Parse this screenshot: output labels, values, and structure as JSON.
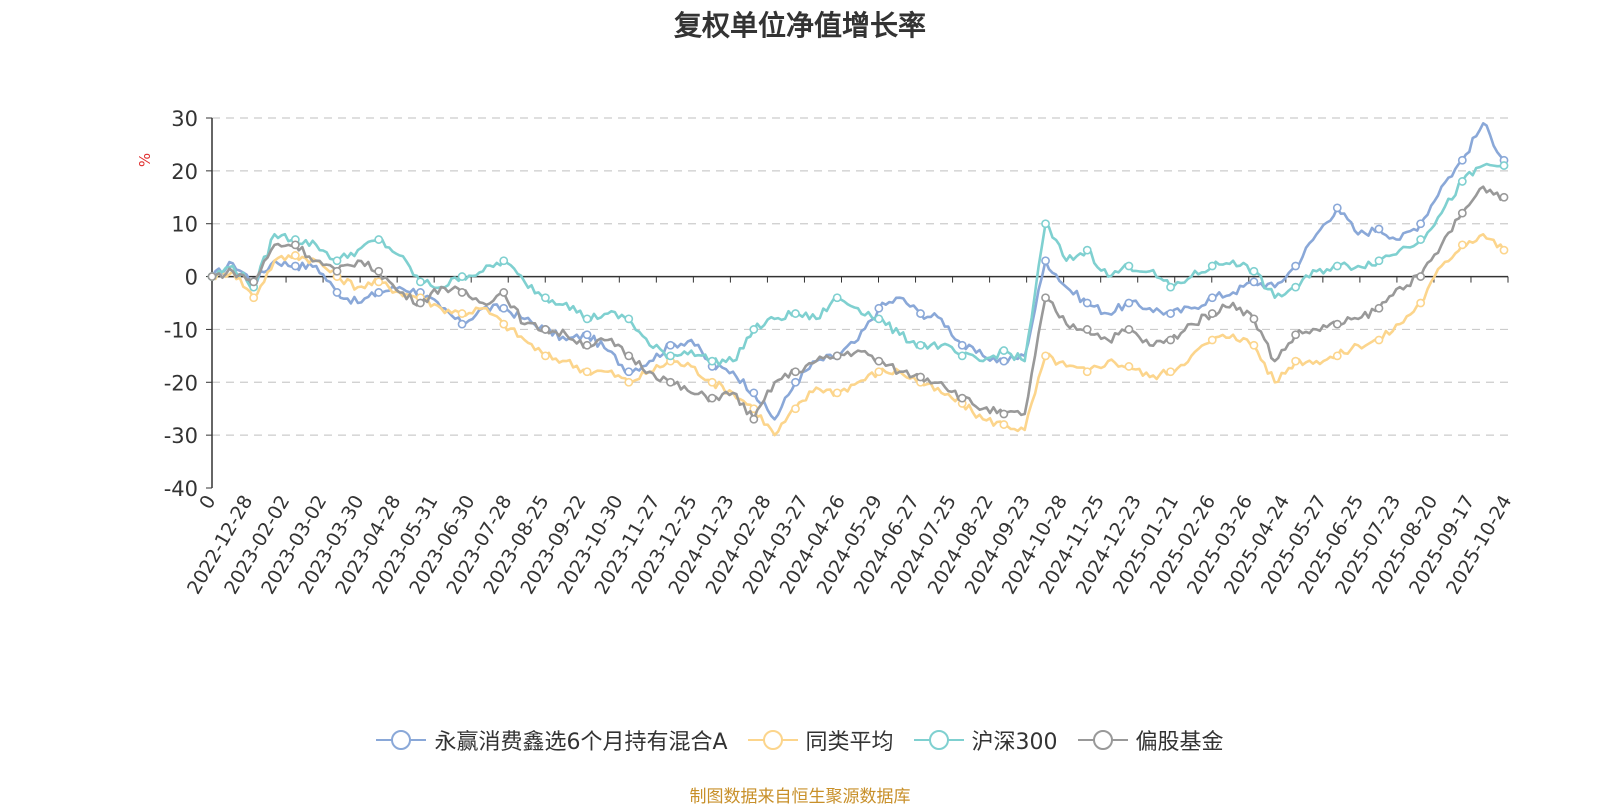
{
  "chart_data": {
    "type": "line",
    "title": "复权单位净值增长率",
    "ylabel": "%",
    "xlabel": "",
    "ylim": [
      -40,
      30
    ],
    "yticks": [
      -40,
      -30,
      -20,
      -10,
      0,
      10,
      20,
      30
    ],
    "grid": true,
    "legend_position": "bottom",
    "x_ticks": [
      "2022-12-28",
      "2023-02-02",
      "2023-03-02",
      "2023-03-30",
      "2023-04-28",
      "2023-05-31",
      "2023-06-30",
      "2023-07-28",
      "2023-08-25",
      "2023-09-22",
      "2023-10-30",
      "2023-11-27",
      "2023-12-25",
      "2024-01-23",
      "2024-02-28",
      "2024-03-27",
      "2024-04-26",
      "2024-05-29",
      "2024-06-27",
      "2024-07-25",
      "2024-08-22",
      "2024-09-23",
      "2024-10-28",
      "2024-11-25",
      "2024-12-23",
      "2025-01-21",
      "2025-02-26",
      "2025-03-26",
      "2025-04-24",
      "2025-05-27",
      "2025-06-25",
      "2025-07-23",
      "2025-08-20",
      "2025-09-17",
      "2025-10-24"
    ],
    "x_first_label": "0",
    "series": [
      {
        "name": "永赢消费鑫选6个月持有混合A",
        "color": "#8aa8d8",
        "values": [
          0,
          2.5,
          -1,
          3,
          2,
          2,
          -3,
          -5,
          -3,
          -2,
          -3,
          -6,
          -9,
          -6,
          -6,
          -8,
          -10,
          -12,
          -11,
          -14,
          -18,
          -16,
          -13,
          -12,
          -17,
          -18,
          -22,
          -27,
          -20,
          -16,
          -15,
          -12,
          -6,
          -4,
          -7,
          -8,
          -13,
          -15,
          -16,
          -15,
          3,
          -2,
          -5,
          -7,
          -5,
          -6,
          -7,
          -6,
          -4,
          -3,
          -1,
          -2,
          2,
          8,
          13,
          8,
          9,
          7,
          10,
          17,
          22,
          29,
          22
        ]
      },
      {
        "name": "同类平均",
        "color": "#fcd58c",
        "values": [
          0,
          1,
          -4,
          3,
          4,
          3,
          0,
          -2,
          -1,
          -3,
          -4,
          -6,
          -7,
          -6,
          -9,
          -12,
          -15,
          -16,
          -18,
          -18,
          -20,
          -18,
          -16,
          -17,
          -20,
          -22,
          -25,
          -30,
          -25,
          -21,
          -22,
          -20,
          -18,
          -18,
          -20,
          -22,
          -24,
          -27,
          -28,
          -29,
          -15,
          -17,
          -18,
          -16,
          -17,
          -19,
          -18,
          -15,
          -12,
          -11,
          -13,
          -20,
          -16,
          -16,
          -15,
          -13,
          -12,
          -9,
          -5,
          2,
          6,
          8,
          5
        ]
      },
      {
        "name": "沪深300",
        "color": "#7fd0d0",
        "values": [
          0,
          2,
          -2,
          8,
          7,
          6,
          3,
          5,
          7,
          4,
          -1,
          -2,
          0,
          1,
          3,
          -1,
          -4,
          -5,
          -8,
          -7,
          -8,
          -13,
          -15,
          -14,
          -16,
          -16,
          -10,
          -8,
          -7,
          -8,
          -4,
          -6,
          -8,
          -11,
          -13,
          -13,
          -15,
          -16,
          -14,
          -16,
          10,
          3,
          5,
          0,
          2,
          1,
          -2,
          0,
          2,
          3,
          1,
          -4,
          -2,
          1,
          2,
          2,
          3,
          5,
          7,
          12,
          18,
          21,
          21
        ]
      },
      {
        "name": "偏股基金",
        "color": "#999999",
        "values": [
          0,
          1,
          -1,
          6,
          6,
          3,
          1,
          3,
          1,
          -3,
          -5,
          -2,
          -3,
          -5,
          -3,
          -9,
          -10,
          -11,
          -13,
          -12,
          -15,
          -18,
          -20,
          -22,
          -23,
          -22,
          -27,
          -20,
          -18,
          -16,
          -15,
          -14,
          -16,
          -18,
          -19,
          -20,
          -23,
          -25,
          -26,
          -26,
          -4,
          -9,
          -10,
          -12,
          -10,
          -13,
          -12,
          -9,
          -7,
          -5,
          -8,
          -16,
          -11,
          -10,
          -9,
          -8,
          -6,
          -2,
          0,
          6,
          12,
          17,
          15
        ]
      }
    ]
  },
  "source_note": "制图数据来自恒生聚源数据库"
}
